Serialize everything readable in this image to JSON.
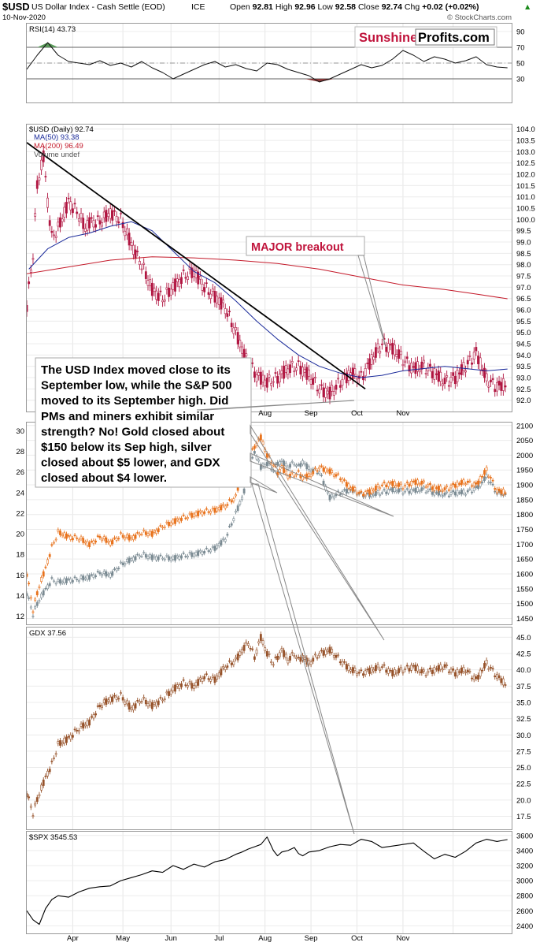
{
  "header": {
    "symbol": "$USD",
    "name": "US Dollar Index - Cash Settle (EOD)",
    "exchange": "ICE",
    "date": "10-Nov-2020",
    "open_label": "Open",
    "open": "92.81",
    "high_label": "High",
    "high": "92.96",
    "low_label": "Low",
    "low": "92.58",
    "close_label": "Close",
    "close": "92.74",
    "chg_label": "Chg",
    "chg": "+0.02 (+0.02%)",
    "source": "© StockCharts.com"
  },
  "logo": {
    "part1": "Sunshine",
    "part2": "Profits.com"
  },
  "colors": {
    "usd_candles": "#b01540",
    "ma50": "#1a2a9a",
    "ma200": "#c41a2a",
    "gold": "#e8721c",
    "silver": "#7a8a92",
    "gdx": "#96522a",
    "spx": "#000000",
    "rsi_fill_high": "#5a9a5a",
    "rsi_fill_low": "#8a3a3a",
    "accent": "#c0143c"
  },
  "annotations": {
    "breakout": "MAJOR breakout",
    "note_lines": [
      "The USD Index moved close to its",
      "September low, while the S&P 500",
      "moved to its September high. Did",
      "PMs and miners exhibit similar",
      "strength? No! Gold closed about",
      "$150 below its Sep high, silver",
      "closed about $5 lower, and GDX",
      "closed about $4 lower."
    ]
  },
  "chart_data": [
    {
      "type": "line",
      "panel": "rsi",
      "title": "RSI(14) 43.73",
      "ylim": [
        0,
        100
      ],
      "yticks": [
        30,
        50,
        70,
        90
      ],
      "x": [
        0,
        5,
        10,
        15,
        20,
        25,
        30,
        35,
        40,
        45,
        50,
        55,
        60,
        65,
        70,
        75,
        80,
        85,
        90,
        95,
        100,
        105,
        110,
        115,
        120,
        125,
        130,
        135,
        140,
        145,
        150,
        155,
        160,
        165,
        170,
        175,
        180,
        185,
        190,
        195,
        200,
        205,
        210,
        215,
        220,
        225,
        230
      ],
      "values": [
        42,
        60,
        76,
        60,
        52,
        50,
        48,
        53,
        47,
        50,
        45,
        52,
        44,
        38,
        30,
        36,
        42,
        48,
        52,
        45,
        48,
        43,
        40,
        50,
        48,
        42,
        38,
        34,
        26,
        30,
        36,
        42,
        48,
        44,
        47,
        55,
        66,
        60,
        52,
        58,
        55,
        50,
        53,
        58,
        48,
        45,
        44
      ]
    },
    {
      "type": "line",
      "panel": "usd",
      "title": "$USD (Daily) 92.74",
      "legend": [
        "MA(50) 93.38",
        "MA(200) 96.49",
        "Volume undef"
      ],
      "ylim": [
        91.5,
        104.2
      ],
      "yticks": [
        92.0,
        92.5,
        93.0,
        93.5,
        94.0,
        94.5,
        95.0,
        95.5,
        96.0,
        96.5,
        97.0,
        97.5,
        98.0,
        98.5,
        99.0,
        99.5,
        100.0,
        100.5,
        101.0,
        101.5,
        102.0,
        102.5,
        103.0,
        103.5,
        104.0
      ],
      "xticks": [
        "Apr",
        "May",
        "Jun",
        "Jul",
        "Aug",
        "Sep",
        "Oct",
        "Nov"
      ],
      "series": [
        {
          "name": "$USD",
          "x": [
            0,
            3,
            5,
            8,
            10,
            12,
            15,
            18,
            20,
            25,
            28,
            30,
            35,
            40,
            45,
            50,
            55,
            60,
            65,
            70,
            75,
            80,
            85,
            90,
            95,
            100,
            105,
            110,
            115,
            120,
            125,
            130,
            135,
            140,
            145,
            150,
            155,
            160,
            165,
            170,
            175,
            180,
            185,
            190,
            195,
            200,
            205,
            210,
            215,
            220,
            225,
            230
          ],
          "values": [
            96.2,
            98.5,
            101.5,
            102.8,
            100.8,
            99.2,
            99.6,
            100.3,
            100.8,
            100.2,
            99.6,
            99.9,
            99.9,
            100.3,
            100.0,
            98.9,
            98.0,
            96.9,
            96.5,
            97.0,
            97.5,
            97.7,
            97.0,
            96.6,
            96.1,
            95.0,
            93.8,
            93.1,
            92.8,
            93.0,
            93.4,
            93.5,
            93.1,
            92.5,
            92.3,
            92.8,
            93.2,
            93.0,
            93.8,
            94.5,
            94.3,
            93.8,
            93.4,
            93.5,
            93.2,
            92.8,
            93.0,
            93.5,
            94.1,
            92.9,
            92.6,
            92.74
          ]
        },
        {
          "name": "MA(50)",
          "x": [
            1,
            10,
            20,
            30,
            40,
            50,
            60,
            70,
            80,
            90,
            100,
            110,
            120,
            130,
            140,
            150,
            160,
            170,
            180,
            190,
            200,
            210,
            220,
            230
          ],
          "values": [
            97.8,
            98.7,
            99.2,
            99.4,
            99.7,
            99.9,
            99.5,
            98.6,
            97.7,
            97.2,
            96.4,
            95.5,
            94.7,
            94.0,
            93.5,
            93.2,
            93.0,
            93.1,
            93.3,
            93.4,
            93.5,
            93.4,
            93.3,
            93.38
          ]
        },
        {
          "name": "MA(200)",
          "x": [
            0,
            20,
            40,
            60,
            80,
            100,
            120,
            140,
            160,
            180,
            200,
            215,
            230
          ],
          "values": [
            97.6,
            97.9,
            98.2,
            98.35,
            98.3,
            98.2,
            98.05,
            97.8,
            97.45,
            97.1,
            96.9,
            96.7,
            96.49
          ]
        },
        {
          "name": "Trendline",
          "x": [
            0,
            162
          ],
          "values": [
            103.4,
            92.5
          ]
        }
      ]
    },
    {
      "type": "line",
      "panel": "gold_silver",
      "left_yticks": [
        12,
        14,
        16,
        18,
        20,
        22,
        24,
        26,
        28,
        30
      ],
      "right_yticks": [
        1450,
        1500,
        1550,
        1600,
        1650,
        1700,
        1750,
        1800,
        1850,
        1900,
        1950,
        2000,
        2050,
        2100
      ],
      "series": [
        {
          "name": "Gold",
          "x": [
            0,
            3,
            6,
            9,
            12,
            15,
            20,
            25,
            30,
            35,
            40,
            45,
            50,
            55,
            60,
            65,
            70,
            75,
            80,
            85,
            90,
            95,
            100,
            103,
            106,
            109,
            112,
            115,
            118,
            120,
            122,
            125,
            128,
            130,
            132,
            135,
            140,
            145,
            150,
            155,
            160,
            165,
            170,
            175,
            180,
            185,
            190,
            195,
            200,
            205,
            210,
            215,
            220,
            225,
            230
          ],
          "values": [
            1600,
            1480,
            1560,
            1620,
            1690,
            1740,
            1725,
            1720,
            1700,
            1725,
            1705,
            1730,
            1720,
            1740,
            1735,
            1760,
            1775,
            1790,
            1800,
            1810,
            1815,
            1830,
            1860,
            1950,
            1980,
            2030,
            2060,
            2000,
            1970,
            1940,
            1960,
            1930,
            1935,
            1940,
            1925,
            1930,
            1960,
            1945,
            1925,
            1890,
            1870,
            1880,
            1900,
            1905,
            1895,
            1910,
            1905,
            1890,
            1885,
            1900,
            1910,
            1900,
            1950,
            1880,
            1875
          ]
        },
        {
          "name": "Silver",
          "x": [
            0,
            3,
            6,
            9,
            12,
            15,
            20,
            25,
            30,
            35,
            40,
            45,
            50,
            55,
            60,
            65,
            70,
            75,
            80,
            85,
            90,
            95,
            100,
            103,
            106,
            109,
            112,
            115,
            118,
            120,
            122,
            125,
            128,
            130,
            132,
            135,
            140,
            145,
            150,
            155,
            160,
            165,
            170,
            175,
            180,
            185,
            190,
            195,
            200,
            205,
            210,
            215,
            220,
            225,
            230
          ],
          "values": [
            14.2,
            12.2,
            13.6,
            14.6,
            15.5,
            15.3,
            15.5,
            15.6,
            15.8,
            16.2,
            16.0,
            17.0,
            17.5,
            18.0,
            17.7,
            17.7,
            17.6,
            17.9,
            18.0,
            18.3,
            18.6,
            19.5,
            22.0,
            23.5,
            25.5,
            28.0,
            26.5,
            26.8,
            26.2,
            26.9,
            27.0,
            26.5,
            26.9,
            26.5,
            27.0,
            26.3,
            26.0,
            23.5,
            24.0,
            24.3,
            23.8,
            23.8,
            24.0,
            24.3,
            24.1,
            24.2,
            24.3,
            24.0,
            23.8,
            24.0,
            24.0,
            24.4,
            25.5,
            24.0,
            23.9
          ]
        }
      ]
    },
    {
      "type": "line",
      "panel": "gdx",
      "title": "GDX 37.56",
      "ylim": [
        15.5,
        46.5
      ],
      "yticks": [
        17.5,
        20.0,
        22.5,
        25.0,
        27.5,
        30.0,
        32.5,
        35.0,
        37.5,
        40.0,
        42.5,
        45.0
      ],
      "series": [
        {
          "name": "GDX",
          "x": [
            0,
            3,
            6,
            9,
            12,
            15,
            20,
            25,
            30,
            35,
            40,
            45,
            50,
            55,
            60,
            65,
            70,
            75,
            80,
            85,
            90,
            95,
            100,
            103,
            106,
            109,
            112,
            115,
            118,
            120,
            122,
            125,
            128,
            130,
            132,
            135,
            140,
            145,
            150,
            155,
            160,
            165,
            170,
            175,
            180,
            185,
            190,
            195,
            200,
            205,
            210,
            215,
            220,
            225,
            230
          ],
          "values": [
            21.0,
            18.0,
            21.0,
            23.5,
            25.5,
            28.5,
            29.5,
            31.0,
            32.0,
            34.5,
            35.5,
            36.0,
            34.0,
            35.5,
            34.5,
            35.5,
            37.0,
            38.0,
            37.5,
            39.0,
            38.5,
            40.5,
            41.5,
            43.0,
            44.2,
            42.0,
            45.0,
            42.5,
            41.0,
            42.0,
            43.0,
            41.5,
            42.5,
            41.5,
            42.0,
            41.0,
            42.5,
            43.0,
            41.5,
            40.0,
            39.5,
            40.0,
            40.5,
            39.5,
            40.0,
            40.5,
            39.5,
            40.0,
            40.5,
            39.5,
            40.0,
            38.5,
            41.0,
            39.0,
            37.56
          ]
        }
      ]
    },
    {
      "type": "line",
      "panel": "spx",
      "title": "$SPX 3545.53",
      "ylim": [
        2300,
        3650
      ],
      "yticks": [
        2400,
        2600,
        2800,
        3000,
        3200,
        3400,
        3600
      ],
      "series": [
        {
          "name": "$SPX",
          "x": [
            0,
            3,
            6,
            9,
            12,
            15,
            20,
            25,
            30,
            35,
            40,
            45,
            50,
            55,
            60,
            65,
            70,
            75,
            80,
            85,
            90,
            95,
            100,
            103,
            106,
            109,
            112,
            115,
            118,
            120,
            122,
            125,
            128,
            130,
            132,
            135,
            140,
            145,
            150,
            155,
            160,
            165,
            170,
            175,
            180,
            185,
            190,
            195,
            200,
            205,
            210,
            215,
            220,
            225,
            230
          ],
          "values": [
            2600,
            2480,
            2420,
            2630,
            2750,
            2800,
            2780,
            2850,
            2900,
            2920,
            2930,
            3000,
            3040,
            3080,
            3130,
            3110,
            3200,
            3150,
            3220,
            3180,
            3250,
            3280,
            3350,
            3380,
            3420,
            3450,
            3480,
            3580,
            3400,
            3330,
            3380,
            3400,
            3440,
            3360,
            3330,
            3380,
            3400,
            3450,
            3480,
            3470,
            3550,
            3520,
            3440,
            3460,
            3480,
            3500,
            3390,
            3290,
            3350,
            3310,
            3390,
            3500,
            3550,
            3520,
            3545.53
          ]
        }
      ]
    }
  ]
}
